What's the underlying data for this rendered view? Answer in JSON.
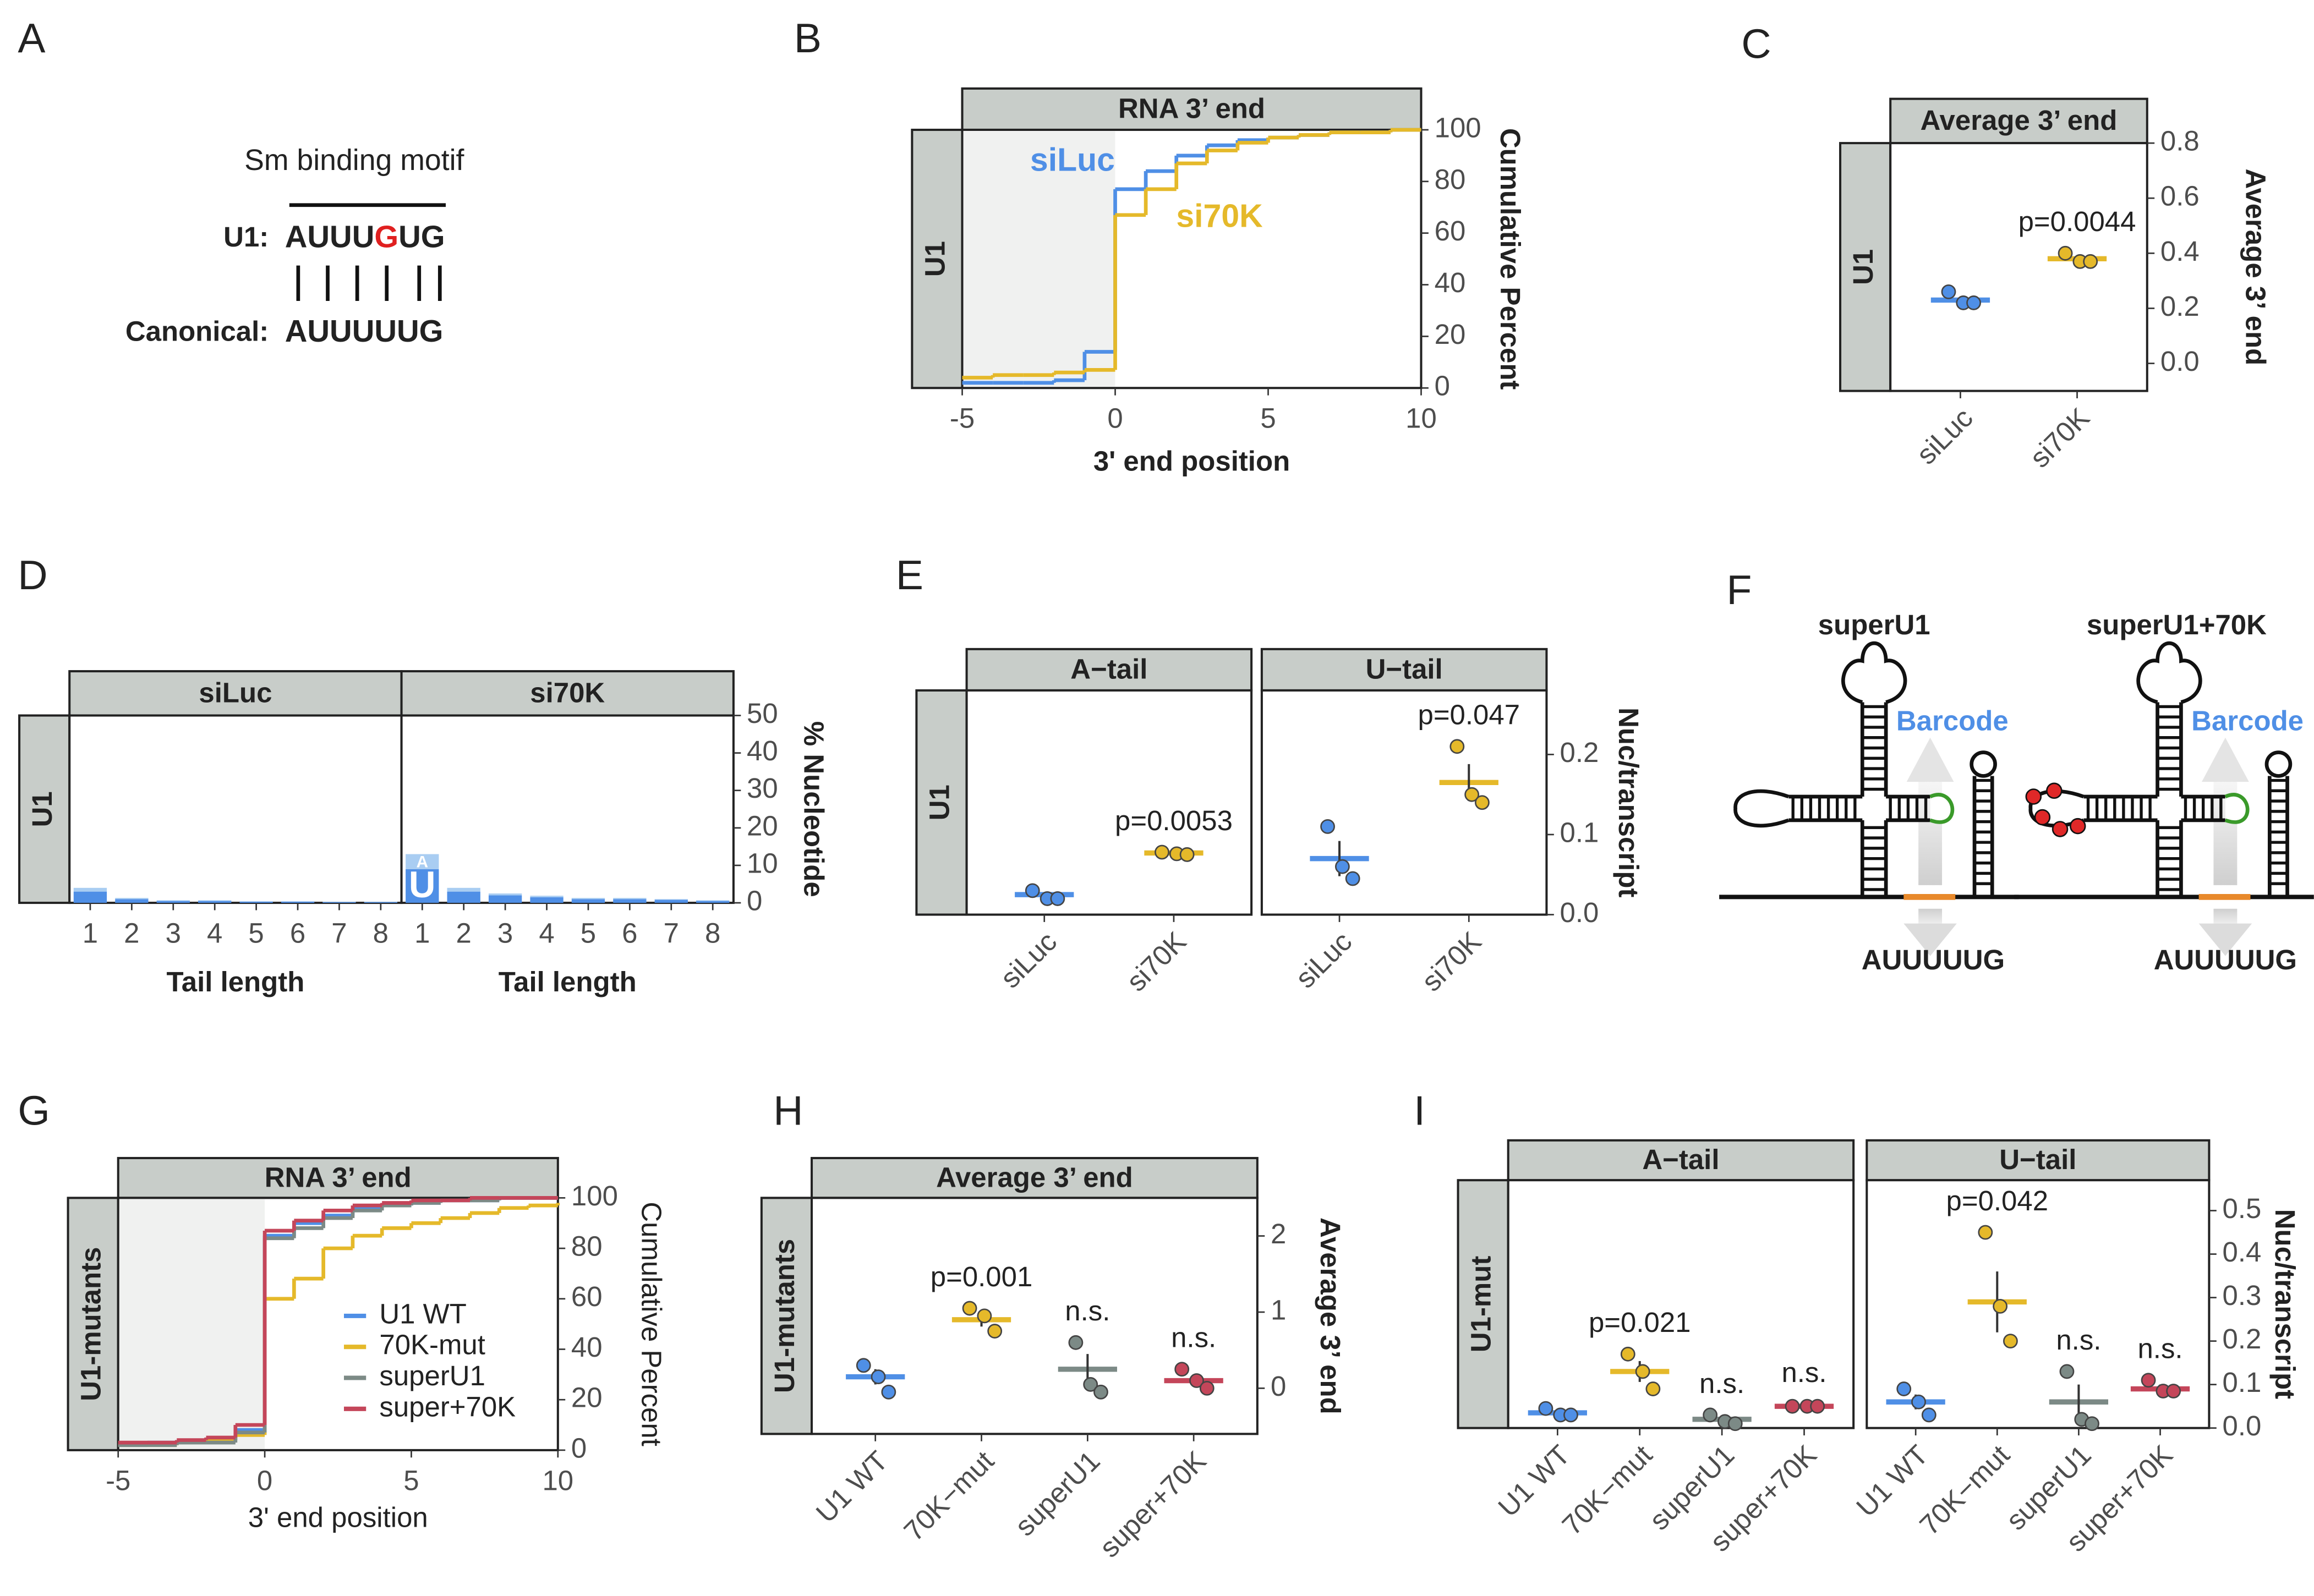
{
  "panel_labels": [
    "A",
    "B",
    "C",
    "D",
    "E",
    "F",
    "G",
    "H",
    "I"
  ],
  "panel_a": {
    "title": "Sm binding motif",
    "rows": [
      {
        "label": "U1:",
        "sequence": [
          "AUUU",
          "G",
          "UG"
        ]
      },
      {
        "label": "Canonical:",
        "sequence": [
          "AUUUUUG"
        ]
      }
    ]
  },
  "panel_f": {
    "constructs": [
      {
        "name": "superU1",
        "barcode": "Barcode",
        "motif": "AUUUUUG"
      },
      {
        "name": "superU1+70K",
        "barcode": "Barcode",
        "motif": "AUUUUUG"
      }
    ]
  },
  "chart_data": [
    {
      "type": "step",
      "title": "RNA 3’ end",
      "row_label": "U1",
      "xlabel": "3' end position",
      "ylabel": "Cumulative Percent",
      "x": [
        -5,
        -4,
        -3,
        -2,
        -1,
        0,
        1,
        2,
        3,
        4,
        5,
        6,
        7,
        8,
        9,
        10
      ],
      "series": [
        {
          "name": "siLuc",
          "color": "#4f8fe6",
          "values": [
            2,
            2,
            2,
            3,
            14,
            77,
            84,
            90,
            94,
            96,
            97,
            98,
            99,
            99,
            100,
            100
          ]
        },
        {
          "name": "si70K",
          "color": "#e5b92a",
          "values": [
            4,
            5,
            5,
            6,
            7,
            67,
            77,
            87,
            92,
            95,
            97,
            98,
            99,
            99,
            100,
            100
          ]
        }
      ],
      "shade": [
        -5,
        0
      ],
      "legend": "labels",
      "xlim": [
        -5,
        10
      ],
      "xticks": [
        -5,
        0,
        5,
        10
      ],
      "ylim": [
        0,
        100
      ],
      "yticks": [
        0,
        20,
        40,
        60,
        80,
        100
      ]
    },
    {
      "type": "dot",
      "title": "Average 3’ end",
      "row_label": "U1",
      "ylabel": "Average 3’ end",
      "categories": [
        "siLuc",
        "si70K"
      ],
      "colors": [
        "#4f8fe6",
        "#e5b92a"
      ],
      "points": [
        [
          0.26,
          0.22,
          0.22
        ],
        [
          0.4,
          0.37,
          0.37
        ]
      ],
      "means": [
        0.23,
        0.38
      ],
      "annotations": [
        null,
        "p=0.0044"
      ],
      "ylim": [
        -0.1,
        0.8
      ],
      "yticks": [
        {
          "value": 0,
          "label": "0.0"
        },
        {
          "value": 0.2,
          "label": "0.2"
        },
        {
          "value": 0.4,
          "label": "0.4"
        },
        {
          "value": 0.6,
          "label": "0.6"
        },
        {
          "value": 0.8,
          "label": "0.8"
        }
      ]
    },
    {
      "type": "logo",
      "row_label": "U1",
      "xlabel": "Tail length",
      "ylabel": "% Nucleotide",
      "letters": [
        {
          "name": "U",
          "color": "#4f8fe6"
        },
        {
          "name": "A",
          "color": "#a9cdf2"
        }
      ],
      "x": [
        1,
        2,
        3,
        4,
        5,
        6,
        7,
        8
      ],
      "facets": [
        {
          "title": "siLuc",
          "values": [
            [
              3,
              1,
              0.5,
              0.5,
              0.3,
              0.3,
              0.2,
              0.2
            ],
            [
              1,
              0.3,
              0.2,
              0.2,
              0.1,
              0.1,
              0.1,
              0.1
            ]
          ]
        },
        {
          "title": "si70K",
          "values": [
            [
              9,
              3,
              2,
              1.5,
              1,
              1,
              0.8,
              0.5
            ],
            [
              4,
              1,
              0.5,
              0.4,
              0.3,
              0.3,
              0.2,
              0.2
            ]
          ]
        }
      ],
      "xlim": [
        0.5,
        8.5
      ],
      "xticks": [
        1,
        2,
        3,
        4,
        5,
        6,
        7,
        8
      ],
      "ylim": [
        0,
        50
      ],
      "yticks": [
        0,
        10,
        20,
        30,
        40,
        50
      ]
    },
    {
      "type": "dot",
      "row_label": "U1",
      "ylabel": "Nuc/transcript",
      "categories": [
        "siLuc",
        "si70K"
      ],
      "colors": [
        "#4f8fe6",
        "#e5b92a"
      ],
      "facets": [
        {
          "title": "A−tail",
          "points": [
            [
              0.03,
              0.02,
              0.02
            ],
            [
              0.078,
              0.076,
              0.075
            ]
          ],
          "means": [
            0.025,
            0.077
          ],
          "annotations": [
            null,
            "p=0.0053"
          ]
        },
        {
          "title": "U−tail",
          "points": [
            [
              0.11,
              0.06,
              0.045
            ],
            [
              0.21,
              0.15,
              0.14
            ]
          ],
          "means": [
            0.07,
            0.165
          ],
          "errors": [
            0.022,
            0.023
          ],
          "annotations": [
            null,
            "p=0.047"
          ]
        }
      ],
      "ylim": [
        0,
        0.28
      ],
      "yticks": [
        {
          "value": 0,
          "label": "0.0"
        },
        {
          "value": 0.1,
          "label": "0.1"
        },
        {
          "value": 0.2,
          "label": "0.2"
        }
      ]
    },
    {
      "type": "step",
      "title": "RNA 3’ end",
      "row_label": "U1-mutants",
      "xlabel": "3' end position",
      "ylabel": "Cumulative Percent",
      "x": [
        -5,
        -4,
        -3,
        -2,
        -1,
        0,
        1,
        2,
        3,
        4,
        5,
        6,
        7,
        8,
        9,
        10
      ],
      "series": [
        {
          "name": "U1 WT",
          "color": "#4f8fe6",
          "values": [
            2,
            3,
            3,
            4,
            8,
            85,
            90,
            93,
            96,
            97,
            98,
            99,
            99,
            100,
            100,
            100
          ]
        },
        {
          "name": "70K-mut",
          "color": "#e5b92a",
          "values": [
            2,
            2,
            3,
            4,
            6,
            60,
            68,
            80,
            85,
            88,
            90,
            92,
            94,
            96,
            97,
            98
          ]
        },
        {
          "name": "superU1",
          "color": "#7c8a86",
          "values": [
            2,
            2,
            3,
            3,
            7,
            84,
            88,
            92,
            95,
            97,
            98,
            99,
            99,
            100,
            100,
            100
          ]
        },
        {
          "name": "super+70K",
          "color": "#c4465a",
          "values": [
            3,
            3,
            4,
            5,
            10,
            87,
            91,
            95,
            97,
            98,
            99,
            99,
            100,
            100,
            100,
            100
          ]
        }
      ],
      "shade": [
        -5,
        0
      ],
      "legend": "inside",
      "xlim": [
        -5,
        10
      ],
      "xticks": [
        -5,
        0,
        5,
        10
      ],
      "ylim": [
        0,
        100
      ],
      "yticks": [
        0,
        20,
        40,
        60,
        80,
        100
      ]
    },
    {
      "type": "dot",
      "title": "Average 3’ end",
      "row_label": "U1-mutants",
      "ylabel": "Average 3’ end",
      "categories": [
        "U1 WT",
        "70K−mut",
        "superU1",
        "super+70K"
      ],
      "colors": [
        "#4f8fe6",
        "#e5b92a",
        "#7c8a86",
        "#c4465a"
      ],
      "points": [
        [
          0.3,
          0.15,
          -0.05
        ],
        [
          1.05,
          0.95,
          0.75
        ],
        [
          0.6,
          0.05,
          -0.05
        ],
        [
          0.25,
          0.1,
          0.0
        ]
      ],
      "means": [
        0.15,
        0.9,
        0.25,
        0.1
      ],
      "errors": [
        0.1,
        0.09,
        0.2,
        0.08
      ],
      "annotations": [
        null,
        "p=0.001",
        "n.s.",
        "n.s."
      ],
      "ylim": [
        -0.6,
        2.5
      ],
      "yticks": [
        0,
        1,
        2
      ]
    },
    {
      "type": "dot",
      "row_label": "U1-mut",
      "ylabel": "Nuc/transcript",
      "categories": [
        "U1 WT",
        "70K−mut",
        "superU1",
        "super+70K"
      ],
      "colors": [
        "#4f8fe6",
        "#e5b92a",
        "#7c8a86",
        "#c4465a"
      ],
      "facets": [
        {
          "title": "A−tail",
          "points": [
            [
              0.045,
              0.03,
              0.03
            ],
            [
              0.17,
              0.13,
              0.09
            ],
            [
              0.03,
              0.015,
              0.01
            ],
            [
              0.05,
              0.05,
              0.05
            ]
          ],
          "means": [
            0.035,
            0.13,
            0.02,
            0.05
          ],
          "errors": [
            0.008,
            0.024,
            0.008,
            0.005
          ],
          "annotations": [
            null,
            "p=0.021",
            "n.s.",
            "n.s."
          ]
        },
        {
          "title": "U−tail",
          "points": [
            [
              0.09,
              0.06,
              0.03
            ],
            [
              0.45,
              0.28,
              0.2
            ],
            [
              0.13,
              0.02,
              0.01
            ],
            [
              0.11,
              0.085,
              0.085
            ]
          ],
          "means": [
            0.06,
            0.29,
            0.06,
            0.09
          ],
          "errors": [
            0.017,
            0.07,
            0.04,
            0.01
          ],
          "annotations": [
            null,
            "p=0.042",
            "n.s.",
            "n.s."
          ]
        }
      ],
      "ylim": [
        0,
        0.57
      ],
      "yticks": [
        {
          "value": 0,
          "label": "0.0"
        },
        {
          "value": 0.1,
          "label": "0.1"
        },
        {
          "value": 0.2,
          "label": "0.2"
        },
        {
          "value": 0.3,
          "label": "0.3"
        },
        {
          "value": 0.4,
          "label": "0.4"
        },
        {
          "value": 0.5,
          "label": "0.5"
        }
      ]
    }
  ]
}
